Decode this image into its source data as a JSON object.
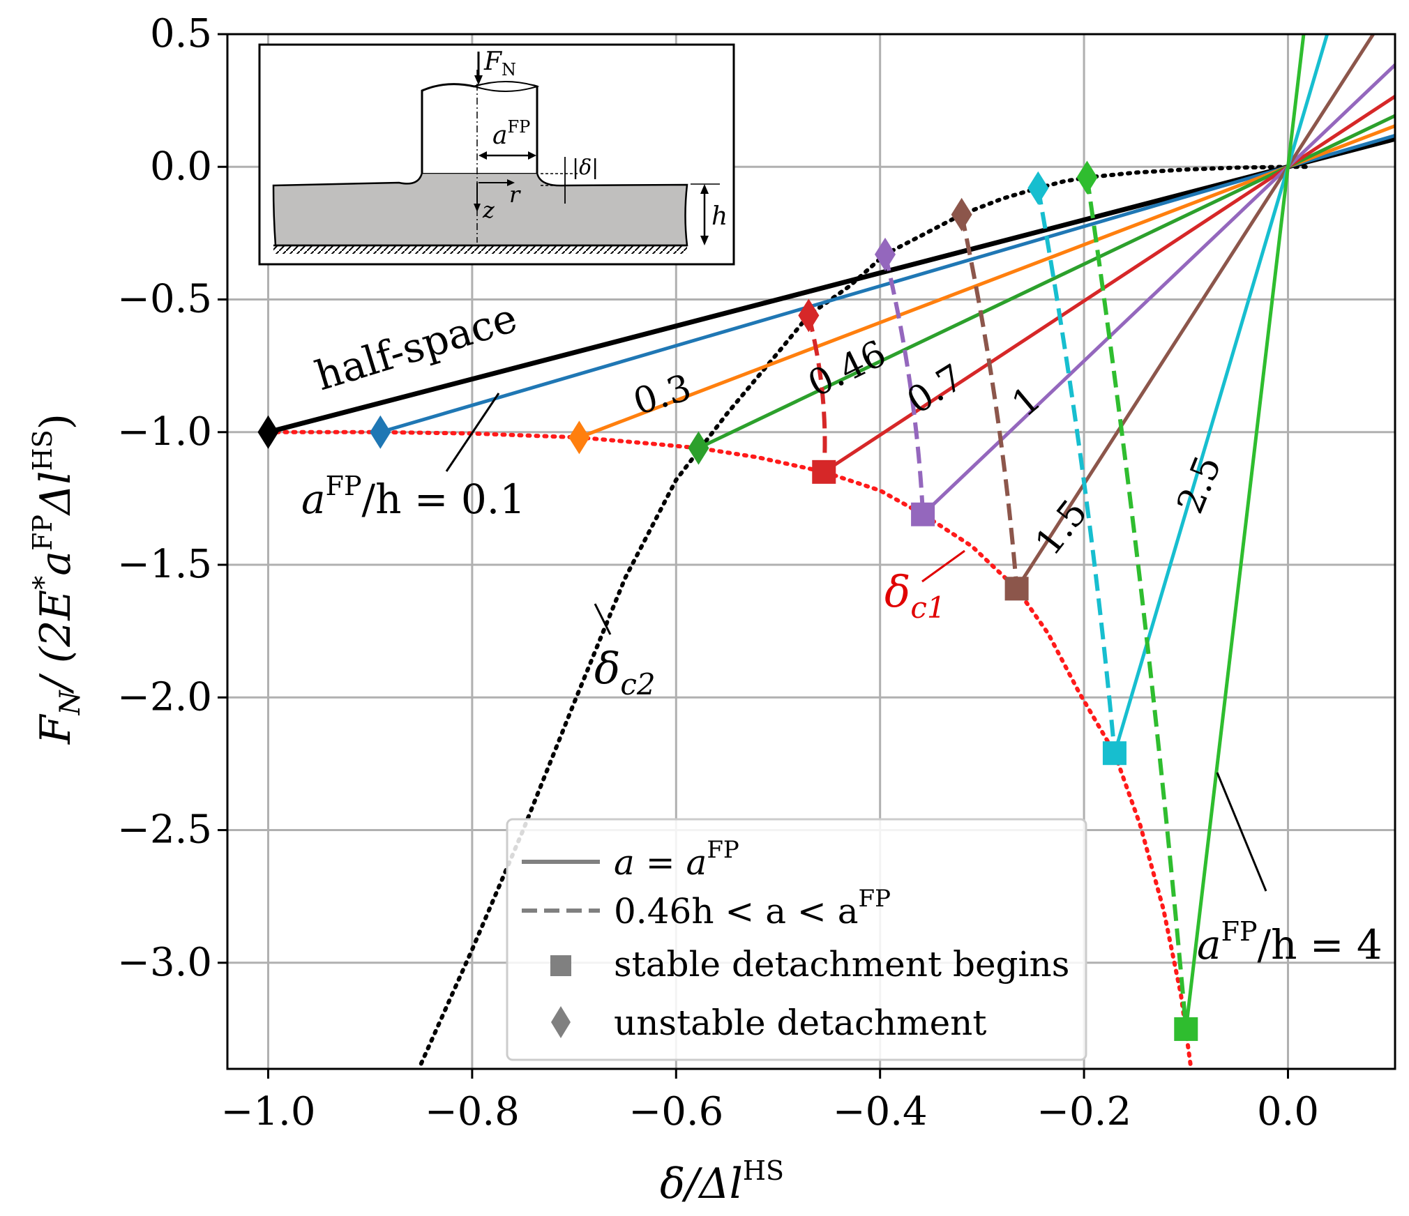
{
  "chart_data": {
    "type": "line",
    "xlabel": "δ/Δl",
    "xlabel_sup": "HS",
    "ylabel": "F_N / (2E*a^FP Δl^HS)",
    "ylabel_parts": {
      "pre": "F",
      "sub": "N",
      "mid": "/ (2E",
      "star": "*",
      "a": "a",
      "sup_fp": "FP",
      "dl": "Δl",
      "sup_hs": "HS",
      "close": ")"
    },
    "xlim": [
      -1.04,
      0.105
    ],
    "ylim": [
      -3.4,
      0.5
    ],
    "xticks": [
      -1.0,
      -0.8,
      -0.6,
      -0.4,
      -0.2,
      0.0
    ],
    "xtick_labels": [
      "−1.0",
      "−0.8",
      "−0.6",
      "−0.4",
      "−0.2",
      "0.0"
    ],
    "yticks": [
      0.5,
      0.0,
      -0.5,
      -1.0,
      -1.5,
      -2.0,
      -2.5,
      -3.0
    ],
    "ytick_labels": [
      "0.5",
      "0.0",
      "−0.5",
      "−1.0",
      "−1.5",
      "−2.0",
      "−2.5",
      "−3.0"
    ],
    "grid": true,
    "series": [
      {
        "name": "half-space",
        "color": "#000000",
        "solid_from": [
          -1.0,
          -1.0
        ],
        "unstable": [
          -1.0,
          -1.0
        ]
      },
      {
        "name": "0.1",
        "color": "#1f77b4",
        "solid_from": [
          -0.89,
          -1.0
        ],
        "unstable": [
          -0.89,
          -1.0
        ]
      },
      {
        "name": "0.3",
        "color": "#ff7f0e",
        "solid_from": [
          -0.695,
          -1.02
        ],
        "unstable": [
          -0.695,
          -1.02
        ]
      },
      {
        "name": "0.46",
        "color": "#2ca02c",
        "solid_from": [
          -0.578,
          -1.06
        ],
        "unstable": [
          -0.578,
          -1.06
        ]
      },
      {
        "name": "0.7",
        "color": "#d62728",
        "solid_from": [
          -0.455,
          -1.15
        ],
        "stable": [
          -0.455,
          -1.15
        ],
        "unstable": [
          -0.47,
          -0.56
        ]
      },
      {
        "name": "1",
        "color": "#9467bd",
        "solid_from": [
          -0.358,
          -1.31
        ],
        "stable": [
          -0.358,
          -1.31
        ],
        "unstable": [
          -0.395,
          -0.33
        ]
      },
      {
        "name": "1.5",
        "color": "#8c564b",
        "solid_from": [
          -0.266,
          -1.59
        ],
        "stable": [
          -0.266,
          -1.59
        ],
        "unstable": [
          -0.32,
          -0.18
        ]
      },
      {
        "name": "2.5",
        "color": "#17becf",
        "solid_from": [
          -0.17,
          -2.21
        ],
        "stable": [
          -0.17,
          -2.21
        ],
        "unstable": [
          -0.245,
          -0.08
        ]
      },
      {
        "name": "4",
        "color": "#2fbd2f",
        "solid_from": [
          -0.1,
          -3.25
        ],
        "stable": [
          -0.1,
          -3.25
        ],
        "unstable": [
          -0.197,
          -0.04
        ]
      }
    ],
    "delta_c1": [
      [
        -1.0,
        -1.0
      ],
      [
        -0.89,
        -1.0
      ],
      [
        -0.8,
        -1.005
      ],
      [
        -0.695,
        -1.02
      ],
      [
        -0.62,
        -1.045
      ],
      [
        -0.578,
        -1.06
      ],
      [
        -0.52,
        -1.095
      ],
      [
        -0.455,
        -1.15
      ],
      [
        -0.4,
        -1.22
      ],
      [
        -0.358,
        -1.31
      ],
      [
        -0.31,
        -1.43
      ],
      [
        -0.266,
        -1.59
      ],
      [
        -0.235,
        -1.76
      ],
      [
        -0.205,
        -1.98
      ],
      [
        -0.17,
        -2.21
      ],
      [
        -0.145,
        -2.48
      ],
      [
        -0.122,
        -2.8
      ],
      [
        -0.105,
        -3.12
      ],
      [
        -0.095,
        -3.4
      ]
    ],
    "delta_c2": [
      [
        -0.85,
        -3.38
      ],
      [
        -0.8,
        -2.95
      ],
      [
        -0.75,
        -2.5
      ],
      [
        -0.7,
        -2.02
      ],
      [
        -0.65,
        -1.55
      ],
      [
        -0.6,
        -1.18
      ],
      [
        -0.55,
        -0.93
      ],
      [
        -0.5,
        -0.7
      ],
      [
        -0.47,
        -0.56
      ],
      [
        -0.43,
        -0.45
      ],
      [
        -0.395,
        -0.33
      ],
      [
        -0.36,
        -0.26
      ],
      [
        -0.32,
        -0.18
      ],
      [
        -0.28,
        -0.12
      ],
      [
        -0.245,
        -0.08
      ],
      [
        -0.22,
        -0.055
      ],
      [
        -0.197,
        -0.04
      ],
      [
        -0.15,
        -0.022
      ],
      [
        -0.1,
        -0.01
      ],
      [
        -0.05,
        -0.003
      ],
      [
        0.0,
        0.0
      ],
      [
        0.02,
        0.0
      ]
    ],
    "annotations": {
      "half_space": "half-space",
      "a_label": "a",
      "fp_sup": "FP",
      "over_h_01": "/h = 0.1",
      "over_h_4": "/h = 4",
      "line_labels": [
        "0.3",
        "0.46",
        "0.7",
        "1",
        "1.5",
        "2.5"
      ],
      "dc1": "δ",
      "dc1_sub": "c1",
      "dc2": "δ",
      "dc2_sub": "c2"
    },
    "legend": {
      "placement": "lower-center",
      "items": [
        {
          "label_pre": "a = a",
          "label_sup": "FP",
          "marker": "solid-line"
        },
        {
          "label_pre": "0.46h < a < a",
          "label_sup": "FP",
          "marker": "dashed-line"
        },
        {
          "label_pre": "stable detachment begins",
          "label_sup": "",
          "marker": "square"
        },
        {
          "label_pre": "unstable detachment",
          "label_sup": "",
          "marker": "diamond"
        }
      ]
    },
    "inset": {
      "f_label": "F",
      "f_sub": "N",
      "a_label": "a",
      "a_sup": "FP",
      "delta_label": "|δ|",
      "z_label": "z",
      "r_label": "r",
      "h_label": "h"
    }
  }
}
